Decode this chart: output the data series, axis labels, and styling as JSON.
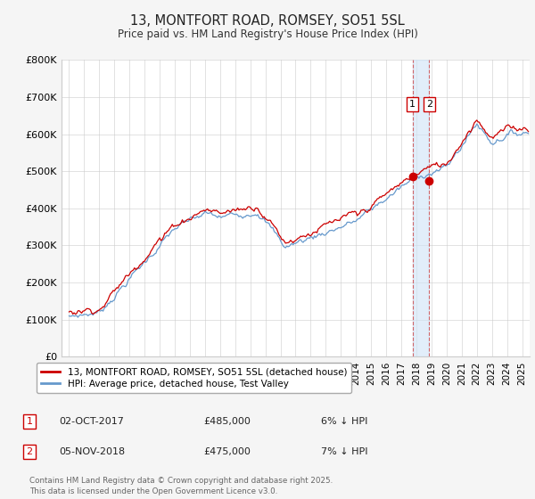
{
  "title": "13, MONTFORT ROAD, ROMSEY, SO51 5SL",
  "subtitle": "Price paid vs. HM Land Registry's House Price Index (HPI)",
  "ylim": [
    0,
    800000
  ],
  "xlim_start": 1994.5,
  "xlim_end": 2025.5,
  "red_line_color": "#cc0000",
  "blue_line_color": "#6699cc",
  "legend1_label": "13, MONTFORT ROAD, ROMSEY, SO51 5SL (detached house)",
  "legend2_label": "HPI: Average price, detached house, Test Valley",
  "transaction1_date": "02-OCT-2017",
  "transaction1_price": "£485,000",
  "transaction1_note": "6% ↓ HPI",
  "transaction2_date": "05-NOV-2018",
  "transaction2_price": "£475,000",
  "transaction2_note": "7% ↓ HPI",
  "vline1_x": 2017.75,
  "vline2_x": 2018.84,
  "trans1_price_val": 485000,
  "trans2_price_val": 475000,
  "footer": "Contains HM Land Registry data © Crown copyright and database right 2025.\nThis data is licensed under the Open Government Licence v3.0.",
  "background_color": "#f5f5f5",
  "plot_bg_color": "#ffffff"
}
